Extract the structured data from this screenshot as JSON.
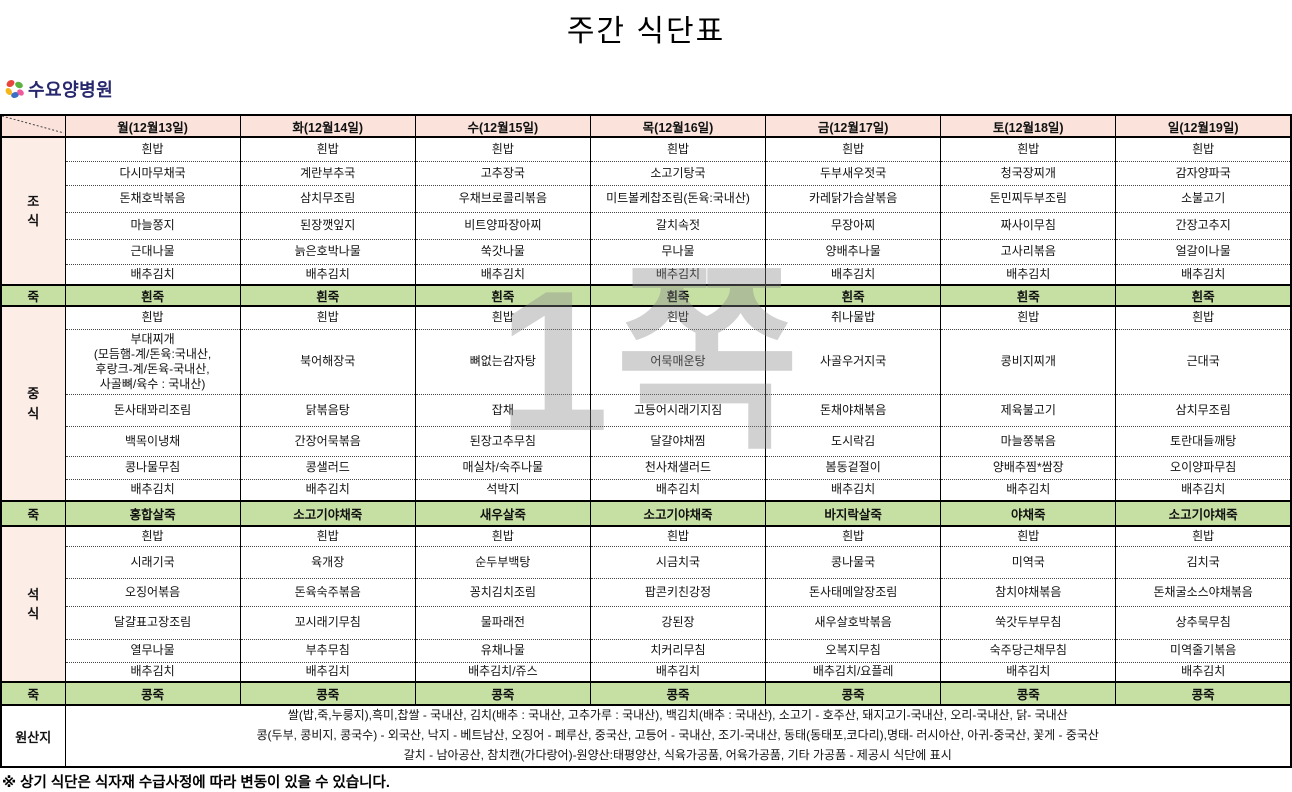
{
  "title": "주간 식단표",
  "logo": {
    "text": "수요양병원",
    "icon": "pinwheel-flower-icon"
  },
  "watermark": "1쪽",
  "footer_note": "※ 상기 식단은 식자재 수급사정에 따라 변동이 있을 수 있습니다.",
  "colors": {
    "header_pink": "#fbe3dc",
    "label_pink": "#fcede7",
    "porridge_green": "#c6e0a4",
    "logo_navy": "#28286e"
  },
  "table": {
    "days": [
      "월(12월13일)",
      "화(12월14일)",
      "수(12월15일)",
      "목(12월16일)",
      "금(12월17일)",
      "토(12월18일)",
      "일(12월19일)"
    ],
    "sections": [
      {
        "label": "조\n식",
        "rows": [
          [
            "흰밥",
            "흰밥",
            "흰밥",
            "흰밥",
            "흰밥",
            "흰밥",
            "흰밥"
          ],
          [
            "다시마무채국",
            "계란부추국",
            "고추장국",
            "소고기탕국",
            "두부새우젓국",
            "청국장찌개",
            "감자양파국"
          ],
          [
            "돈채호박볶음",
            "삼치무조림",
            "우채브로콜리볶음",
            "미트볼케찹조림(돈육:국내산)",
            "카레닭가슴살볶음",
            "돈민찌두부조림",
            "소불고기"
          ],
          [
            "마늘쫑지",
            "된장깻잎지",
            "비트양파장아찌",
            "갈치속젓",
            "무장아찌",
            "짜사이무침",
            "간장고추지"
          ],
          [
            "근대나물",
            "늙은호박나물",
            "쑥갓나물",
            "무나물",
            "양배추나물",
            "고사리볶음",
            "얼갈이나물"
          ],
          [
            "배추김치",
            "배추김치",
            "배추김치",
            "배추김치",
            "배추김치",
            "배추김치",
            "배추김치"
          ]
        ],
        "porridge": {
          "label": "죽",
          "items": [
            "흰죽",
            "흰죽",
            "흰죽",
            "흰죽",
            "흰죽",
            "흰죽",
            "흰죽"
          ]
        }
      },
      {
        "label": "중\n식",
        "rows": [
          [
            "흰밥",
            "흰밥",
            "흰밥",
            "흰밥",
            "취나물밥",
            "흰밥",
            "흰밥"
          ],
          [
            "부대찌개\n(모듬햄-계/돈육:국내산,\n후랑크-계/돈육-국내산,\n사골뼈/육수 : 국내산)",
            "북어해장국",
            "뼈없는감자탕",
            "어묵매운탕",
            "사골우거지국",
            "콩비지찌개",
            "근대국"
          ],
          [
            "돈사태꽈리조림",
            "닭볶음탕",
            "잡채",
            "고등어시래기지짐",
            "돈채야채볶음",
            "제육불고기",
            "삼치무조림"
          ],
          [
            "백목이냉채",
            "간장어묵볶음",
            "된장고추무침",
            "달걀야채찜",
            "도시락김",
            "마늘쫑볶음",
            "토란대들깨탕"
          ],
          [
            "콩나물무침",
            "콩샐러드",
            "매실차/숙주나물",
            "천사채샐러드",
            "봄동겉절이",
            "양배추찜*쌈장",
            "오이양파무침"
          ],
          [
            "배추김치",
            "배추김치",
            "석박지",
            "배추김치",
            "배추김치",
            "배추김치",
            "배추김치"
          ]
        ],
        "porridge": {
          "label": "죽",
          "items": [
            "홍합살죽",
            "소고기야채죽",
            "새우살죽",
            "소고기야채죽",
            "바지락살죽",
            "야채죽",
            "소고기야채죽"
          ]
        }
      },
      {
        "label": "석\n식",
        "rows": [
          [
            "흰밥",
            "흰밥",
            "흰밥",
            "흰밥",
            "흰밥",
            "흰밥",
            "흰밥"
          ],
          [
            "시래기국",
            "육개장",
            "순두부백탕",
            "시금치국",
            "콩나물국",
            "미역국",
            "김치국"
          ],
          [
            "오징어볶음",
            "돈육숙주볶음",
            "꽁치김치조림",
            "팝콘키친강정",
            "돈사태메알장조림",
            "참치야채볶음",
            "돈채굴소스야채볶음"
          ],
          [
            "달걀표고장조림",
            "꼬시래기무침",
            "물파래전",
            "강된장",
            "새우살호박볶음",
            "쑥갓두부무침",
            "상추묵무침"
          ],
          [
            "열무나물",
            "부추무침",
            "유채나물",
            "치커리무침",
            "오복지무침",
            "숙주당근채무침",
            "미역줄기볶음"
          ],
          [
            "배추김치",
            "배추김치",
            "배추김치/쥬스",
            "배추김치",
            "배추김치/요플레",
            "배추김치",
            "배추김치"
          ]
        ],
        "porridge": {
          "label": "죽",
          "items": [
            "콩죽",
            "콩죽",
            "콩죽",
            "콩죽",
            "콩죽",
            "콩죽",
            "콩죽"
          ]
        }
      }
    ],
    "origin": {
      "label": "원산지",
      "lines": "쌀(밥,죽,누룽지),흑미,찹쌀 - 국내산, 김치(배추 : 국내산, 고추가루 : 국내산), 백김치(배추 : 국내산), 소고기 - 호주산, 돼지고기-국내산, 오리-국내산, 닭- 국내산\n콩(두부, 콩비지, 콩국수) - 외국산, 낙지 - 베트남산, 오징어 - 페루산, 중국산, 고등어 - 국내산, 조기-국내산, 동태(동태포,코다리),명태- 러시아산, 아귀-중국산, 꽃게 - 중국산\n갈치 - 남아공산, 참치캔(가다랑어)-원양산:태평양산, 식육가공품, 어육가공품, 기타 가공품 - 제공시 식단에 표시"
    }
  }
}
